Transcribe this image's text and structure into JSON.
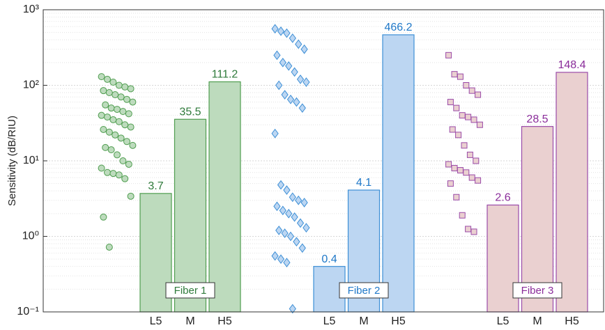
{
  "chart_data": {
    "type": "bar",
    "y_label": "Sensitivity (dB/RIU)",
    "log_scale": true,
    "grid": true,
    "ylim": [
      0.1,
      1000
    ],
    "yticks": [
      {
        "value": 0.1,
        "label": "10⁻¹"
      },
      {
        "value": 1,
        "label": "10⁰"
      },
      {
        "value": 10,
        "label": "10¹"
      },
      {
        "value": 100,
        "label": "10²"
      },
      {
        "value": 1000,
        "label": "10³"
      }
    ],
    "categories": [
      "L5",
      "M",
      "H5"
    ],
    "series": [
      {
        "name": "Fiber 1",
        "color": "#bddbbd",
        "edge": "#4f9d4f",
        "label_color": "#2e7a3a",
        "marker": "circle",
        "values": [
          3.7,
          35.5,
          111.2
        ],
        "points": [
          130,
          120,
          110,
          100,
          95,
          90,
          85,
          80,
          75,
          70,
          65,
          60,
          55,
          50,
          48,
          45,
          42,
          40,
          38,
          35,
          33,
          30,
          28,
          26,
          24,
          22,
          20,
          18,
          16,
          15,
          14,
          12,
          10,
          9,
          8,
          7,
          6.8,
          6.5,
          5.8,
          3.4,
          1.8,
          0.72
        ]
      },
      {
        "name": "Fiber 2",
        "color": "#bcd6f2",
        "edge": "#3d8fd6",
        "label_color": "#1f78c8",
        "marker": "diamond",
        "values": [
          0.4,
          4.1,
          466.2
        ],
        "points": [
          560,
          520,
          490,
          420,
          350,
          300,
          250,
          200,
          180,
          150,
          120,
          110,
          100,
          75,
          65,
          60,
          50,
          23,
          4.8,
          4.1,
          3.3,
          3,
          2.8,
          2.5,
          2.2,
          2,
          1.8,
          1.5,
          1.3,
          1.2,
          1.1,
          1,
          0.85,
          0.7,
          0.55,
          0.5,
          0.45,
          0.11
        ]
      },
      {
        "name": "Fiber 3",
        "color": "#ead0d0",
        "edge": "#9a4aa8",
        "label_color": "#8a2c9a",
        "marker": "square",
        "values": [
          2.6,
          28.5,
          148.4
        ],
        "points": [
          250,
          140,
          130,
          100,
          85,
          75,
          60,
          50,
          40,
          38,
          35,
          30,
          26,
          22,
          16,
          12,
          10,
          9,
          8,
          7.5,
          7,
          6,
          5.5,
          5,
          3.3,
          1.9,
          1.25,
          1.15
        ]
      }
    ]
  }
}
